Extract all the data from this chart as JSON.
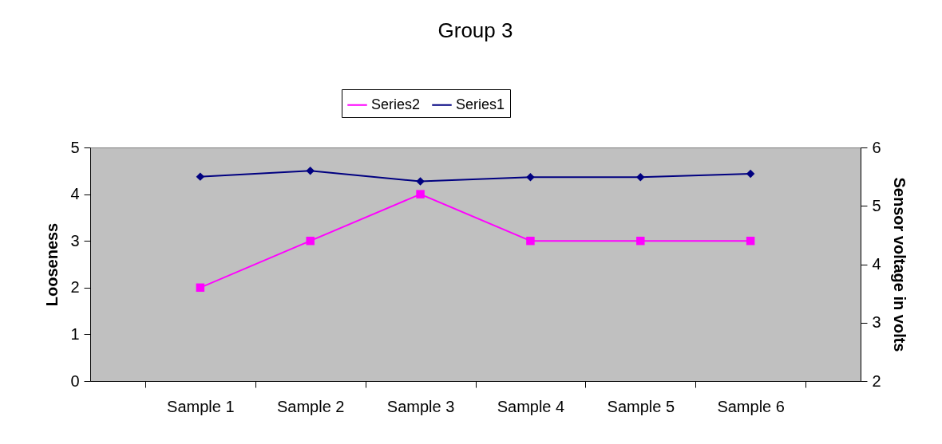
{
  "chart_data": {
    "type": "line",
    "title": "Group 3",
    "ylabel": "Looseness",
    "y2label": "Sensor voltage in volts",
    "categories": [
      "Sample 1",
      "Sample 2",
      "Sample 3",
      "Sample 4",
      "Sample 5",
      "Sample 6"
    ],
    "series": [
      {
        "name": "Series2",
        "color": "#ff00ff",
        "marker": "square",
        "values": [
          2,
          3,
          4,
          3,
          3,
          3
        ]
      },
      {
        "name": "Series1",
        "color": "#000080",
        "marker": "diamond",
        "axis": "y2",
        "values": [
          5.5,
          5.6,
          5.42,
          5.49,
          5.49,
          5.55
        ]
      }
    ],
    "ylim": [
      0,
      5
    ],
    "yticks": [
      0,
      1,
      2,
      3,
      4,
      5
    ],
    "y2lim": [
      2,
      6
    ],
    "y2ticks": [
      2,
      3,
      4,
      5,
      6
    ],
    "grid": false,
    "legend": "top"
  }
}
